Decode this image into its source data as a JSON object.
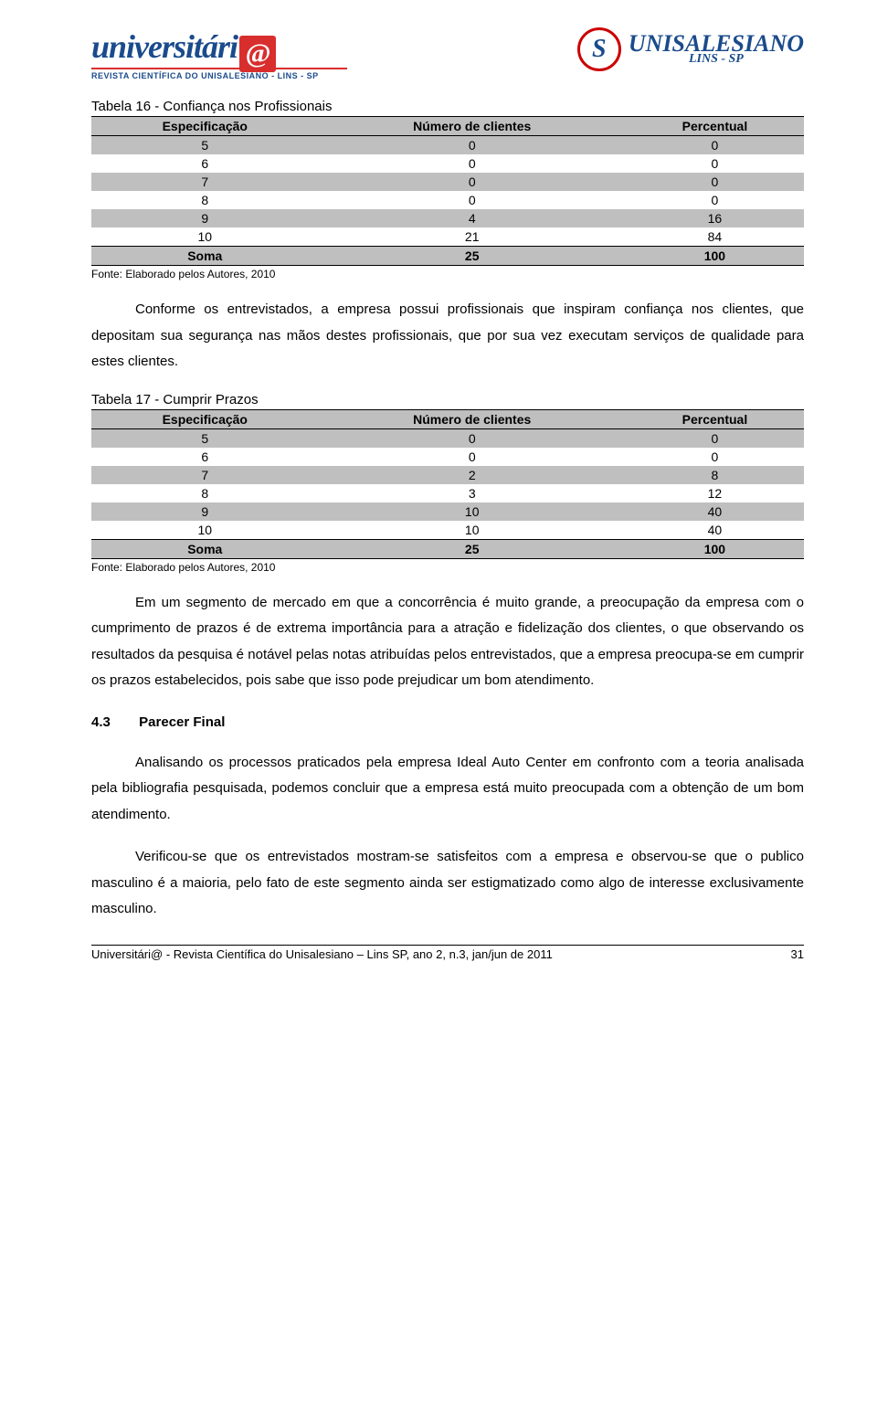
{
  "header": {
    "left_logo_main": "universitári",
    "left_logo_at": "@",
    "left_logo_sub": "REVISTA CIENTÍFICA DO UNISALESIANO - LINS - SP",
    "right_logo_main": "UNISALESIANO",
    "right_logo_sub": "LINS - SP"
  },
  "table16": {
    "title": "Tabela 16 - Confiança nos Profissionais",
    "cols": [
      "Especificação",
      "Número de clientes",
      "Percentual"
    ],
    "rows": [
      [
        "5",
        "0",
        "0"
      ],
      [
        "6",
        "0",
        "0"
      ],
      [
        "7",
        "0",
        "0"
      ],
      [
        "8",
        "0",
        "0"
      ],
      [
        "9",
        "4",
        "16"
      ],
      [
        "10",
        "21",
        "84"
      ]
    ],
    "sum": [
      "Soma",
      "25",
      "100"
    ],
    "source": "Fonte: Elaborado pelos Autores, 2010",
    "shade_rows": [
      0,
      2,
      4
    ],
    "shade_header": true,
    "shade_sum": true,
    "style": {
      "header_bg": "#bfbfbf",
      "row_shade": "#bfbfbf",
      "border_color": "#000000",
      "font_size": 14
    }
  },
  "para1": "Conforme os entrevistados, a empresa possui profissionais que inspiram confiança nos clientes, que depositam sua segurança nas mãos destes profissionais, que por sua vez executam serviços de qualidade para estes clientes.",
  "table17": {
    "title": "Tabela 17 - Cumprir Prazos",
    "cols": [
      "Especificação",
      "Número de clientes",
      "Percentual"
    ],
    "rows": [
      [
        "5",
        "0",
        "0"
      ],
      [
        "6",
        "0",
        "0"
      ],
      [
        "7",
        "2",
        "8"
      ],
      [
        "8",
        "3",
        "12"
      ],
      [
        "9",
        "10",
        "40"
      ],
      [
        "10",
        "10",
        "40"
      ]
    ],
    "sum": [
      "Soma",
      "25",
      "100"
    ],
    "source": "Fonte: Elaborado pelos Autores, 2010",
    "shade_rows": [
      0,
      2,
      4
    ],
    "shade_header": true,
    "shade_sum": true,
    "style": {
      "header_bg": "#bfbfbf",
      "row_shade": "#bfbfbf",
      "border_color": "#000000",
      "font_size": 14
    }
  },
  "para2": "Em um segmento de mercado em que a concorrência é muito grande, a preocupação da empresa com o cumprimento de prazos é de extrema importância para a atração e fidelização dos clientes, o que observando os resultados da pesquisa é notável pelas notas atribuídas pelos entrevistados, que a empresa preocupa-se em cumprir os prazos estabelecidos, pois sabe que isso pode prejudicar um bom atendimento.",
  "section43": {
    "num": "4.3",
    "title": "Parecer Final"
  },
  "para3": "Analisando os processos praticados pela empresa Ideal Auto Center em confronto com a teoria analisada pela bibliografia pesquisada, podemos concluir que a empresa está muito preocupada com a obtenção de um bom atendimento.",
  "para4": "Verificou-se que os entrevistados mostram-se satisfeitos com a empresa e observou-se que o publico masculino é a maioria, pelo fato de este segmento ainda ser estigmatizado como algo de interesse exclusivamente masculino.",
  "footer": {
    "text": "Universitári@ - Revista Científica do Unisalesiano – Lins SP, ano 2, n.3, jan/jun de 2011",
    "page": "31"
  }
}
